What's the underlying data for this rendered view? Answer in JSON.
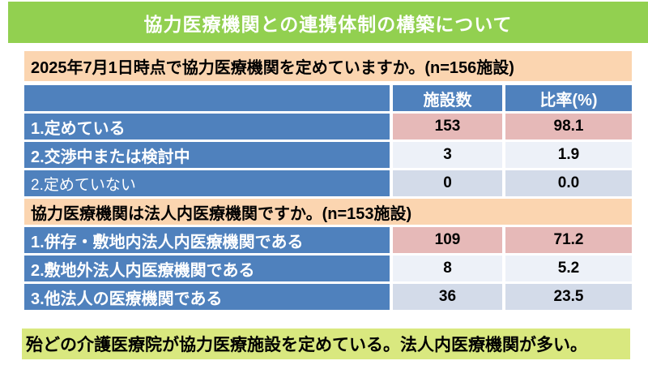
{
  "slide": {
    "title": "協力医療機関との連携体制の構築について",
    "question1": "2025年7月1日時点で協力医療機関を定めていますか。(n=156施設)",
    "question2": "協力医療機関は法人内医療機関ですか。(n=153施設)",
    "conclusion": "殆どの介護医療院が協力医療施設を定めている。法人内医療機関が多い。"
  },
  "table": {
    "columns": {
      "item": "",
      "count": "施設数",
      "ratio": "比率(%)"
    },
    "section1": [
      {
        "label": "1.定めている",
        "count": "153",
        "ratio": "98.1"
      },
      {
        "label": "2.交渉中または検討中",
        "count": "3",
        "ratio": "1.9"
      },
      {
        "label": "2.定めていない",
        "count": "0",
        "ratio": "0.0"
      }
    ],
    "section2": [
      {
        "label": "1.併存・敷地内法人内医療機関である",
        "count": "109",
        "ratio": "71.2"
      },
      {
        "label": "2.敷地外法人内医療機関である",
        "count": "8",
        "ratio": "5.2"
      },
      {
        "label": "3.他法人の医療機関である",
        "count": "36",
        "ratio": "23.5"
      }
    ]
  },
  "colors": {
    "title_bg": "#92D050",
    "title_text": "#FFFFFF",
    "question_bg": "#FBD5B0",
    "table_blue": "#4F81BD",
    "highlight_cell": "#E6B9B8",
    "light_cell": "#EDF1F8",
    "medium_cell": "#D3DBE9",
    "conclusion_bg": "#D9E87F"
  }
}
